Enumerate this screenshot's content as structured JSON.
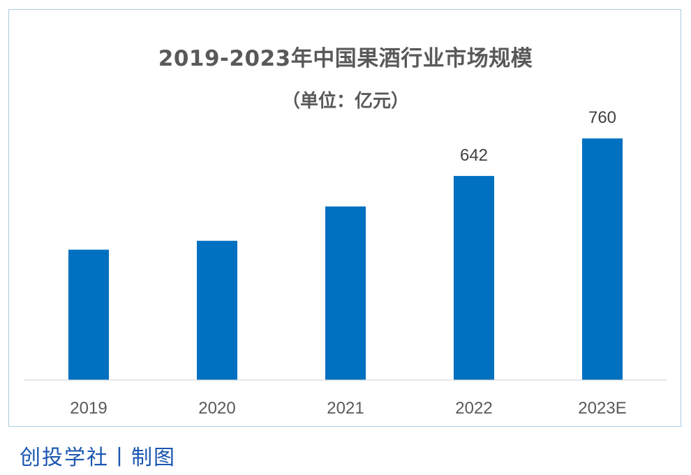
{
  "chart_data": {
    "type": "bar",
    "title": "2019-2023年中国果酒行业市场规模",
    "subtitle": "（单位：亿元）",
    "categories": [
      "2019",
      "2020",
      "2021",
      "2022",
      "2023E"
    ],
    "values": [
      410,
      438,
      546,
      642,
      760
    ],
    "data_labels": [
      "",
      "",
      "",
      "642",
      "760"
    ],
    "ylim": [
      0,
      800
    ],
    "bar_color": "#0070c0",
    "grid": false,
    "legend": "none"
  },
  "credit": "创投学社丨制图"
}
